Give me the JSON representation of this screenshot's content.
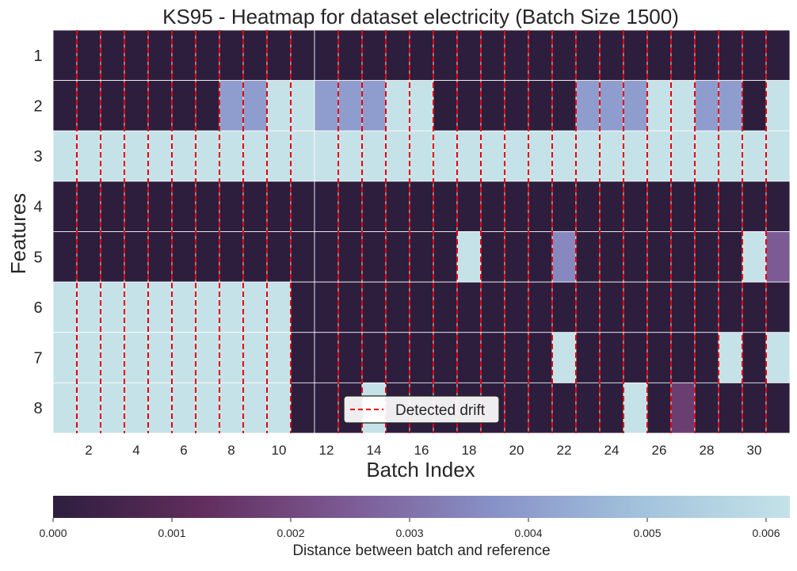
{
  "chart_data": {
    "type": "heatmap",
    "title": "KS95 - Heatmap for dataset electricity (Batch Size 1500)",
    "xlabel": "Batch Index",
    "ylabel": "Features",
    "x": [
      1,
      2,
      3,
      4,
      5,
      6,
      7,
      8,
      9,
      10,
      11,
      12,
      13,
      14,
      15,
      16,
      17,
      18,
      19,
      20,
      21,
      22,
      23,
      24,
      25,
      26,
      27,
      28,
      29,
      30,
      31
    ],
    "x_tick_labels": [
      "2",
      "4",
      "6",
      "8",
      "10",
      "12",
      "14",
      "16",
      "18",
      "20",
      "22",
      "24",
      "26",
      "28",
      "30"
    ],
    "x_tick_values": [
      2,
      4,
      6,
      8,
      10,
      12,
      14,
      16,
      18,
      20,
      22,
      24,
      26,
      28,
      30
    ],
    "y": [
      "1",
      "2",
      "3",
      "4",
      "5",
      "6",
      "7",
      "8"
    ],
    "grid": true,
    "values": [
      [
        0,
        0,
        0,
        0,
        0,
        0,
        0,
        0,
        0,
        0,
        0,
        0,
        0,
        0,
        0,
        0,
        0,
        0,
        0,
        0,
        0,
        0,
        0,
        0,
        0,
        0,
        0,
        0,
        0,
        0,
        0
      ],
      [
        0,
        0,
        0,
        0,
        0,
        0,
        0,
        0.004,
        0.004,
        0.0062,
        0.0062,
        0.004,
        0.004,
        0.004,
        0.0062,
        0.0062,
        0,
        0,
        0,
        0,
        0,
        0,
        0.004,
        0.004,
        0.004,
        0.0062,
        0.0062,
        0.004,
        0.004,
        0,
        0.0062
      ],
      [
        0.0062,
        0.0062,
        0.0062,
        0.0062,
        0.0062,
        0.0062,
        0.0062,
        0.0062,
        0.0062,
        0.0062,
        0.0062,
        0.0062,
        0.0062,
        0.0062,
        0.0062,
        0.0062,
        0.0062,
        0.0062,
        0.0062,
        0.0062,
        0.0062,
        0.0062,
        0.0062,
        0.0062,
        0.0062,
        0.0062,
        0.0062,
        0.0062,
        0.0062,
        0.0062,
        0.0062
      ],
      [
        0,
        0,
        0,
        0,
        0,
        0,
        0,
        0,
        0,
        0,
        0,
        0,
        0,
        0,
        0,
        0,
        0,
        0,
        0,
        0,
        0,
        0,
        0,
        0,
        0,
        0,
        0,
        0,
        0,
        0,
        0
      ],
      [
        0,
        0,
        0,
        0,
        0,
        0,
        0,
        0,
        0,
        0,
        0,
        0,
        0,
        0,
        0,
        0,
        0,
        0.0062,
        0,
        0,
        0,
        0.0035,
        0,
        0,
        0,
        0,
        0,
        0,
        0,
        0.0062,
        0.0025
      ],
      [
        0.0062,
        0.0062,
        0.0062,
        0.0062,
        0.0062,
        0.0062,
        0.0062,
        0.0062,
        0.0062,
        0.0062,
        0,
        0,
        0,
        0,
        0,
        0,
        0,
        0,
        0,
        0,
        0,
        0,
        0,
        0,
        0,
        0,
        0,
        0,
        0,
        0,
        0
      ],
      [
        0.0062,
        0.0062,
        0.0062,
        0.0062,
        0.0062,
        0.0062,
        0.0062,
        0.0062,
        0.0062,
        0.0062,
        0,
        0,
        0,
        0,
        0,
        0,
        0,
        0,
        0,
        0,
        0,
        0.0062,
        0,
        0,
        0,
        0,
        0,
        0,
        0.0062,
        0,
        0.0062
      ],
      [
        0.0062,
        0.0062,
        0.0062,
        0.0062,
        0.0062,
        0.0062,
        0.0062,
        0.0062,
        0.0062,
        0.0062,
        0,
        0,
        0,
        0.0062,
        0,
        0,
        0,
        0,
        0,
        0,
        0,
        0,
        0,
        0,
        0.0062,
        0,
        0.0017,
        0,
        0,
        0,
        0
      ]
    ],
    "drift_positions": [
      1.5,
      2.5,
      3.5,
      4.5,
      5.5,
      6.5,
      7.5,
      8.5,
      9.5,
      10.5,
      12.5,
      13.5,
      14.5,
      15.5,
      16.5,
      17.5,
      18.5,
      19.5,
      20.5,
      21.5,
      22.5,
      23.5,
      24.5,
      25.5,
      26.5,
      27.5,
      28.5,
      29.5,
      30.5
    ],
    "drift_color": "#e8000b",
    "legend": {
      "label": "Detected drift",
      "placement": "bottom-center"
    },
    "colorbar": {
      "label": "Distance between batch and reference",
      "min": 0,
      "max": 0.0062,
      "ticks": [
        0.0,
        0.001,
        0.002,
        0.003,
        0.004,
        0.005,
        0.006
      ],
      "tick_labels": [
        "0.000",
        "0.001",
        "0.002",
        "0.003",
        "0.004",
        "0.005",
        "0.006"
      ],
      "placement": "bottom",
      "colormap": [
        "#2d1e3e",
        "#612d5c",
        "#7c5a94",
        "#8892c8",
        "#a3c3dc",
        "#c5e2e8"
      ]
    }
  }
}
